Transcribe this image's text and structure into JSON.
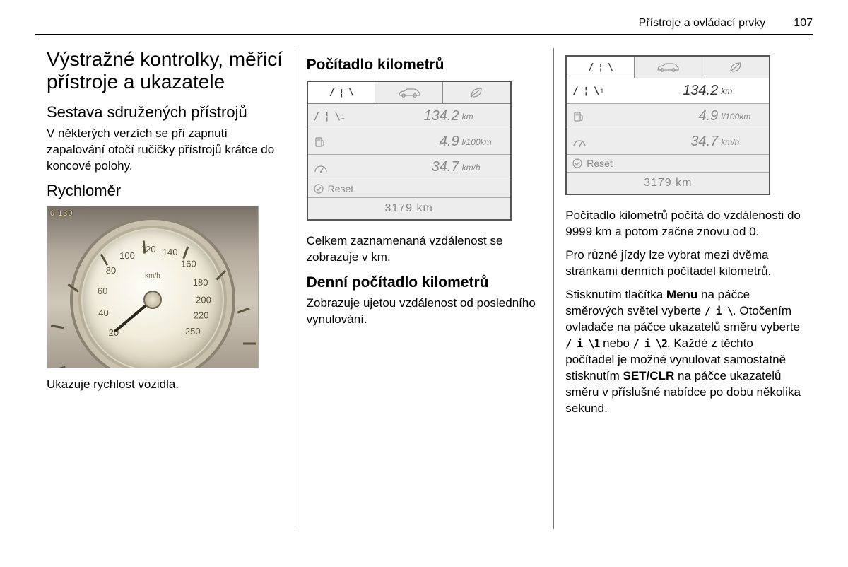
{
  "header": {
    "title": "Přístroje a ovládací prvky",
    "page": "107"
  },
  "col1": {
    "h1": "Výstražné kontrolky, měřicí přístroje a ukazatele",
    "h2a": "Sestava sdružených přístrojů",
    "p1": "V některých verzích se při zapnutí zapalování otočí ručičky přístrojů krátce do koncové polohy.",
    "h2b": "Rychloměr",
    "caption": "Ukazuje rychlost vozidla.",
    "gauge": {
      "unit": "km/h",
      "corner_nums": "0   130",
      "ticks": [
        {
          "label": "20",
          "angle": -130
        },
        {
          "label": "40",
          "angle": -105
        },
        {
          "label": "60",
          "angle": -80
        },
        {
          "label": "80",
          "angle": -55
        },
        {
          "label": "100",
          "angle": -30
        },
        {
          "label": "120",
          "angle": -5
        },
        {
          "label": "140",
          "angle": 20
        },
        {
          "label": "160",
          "angle": 45
        },
        {
          "label": "180",
          "angle": 70
        },
        {
          "label": "200",
          "angle": 90
        },
        {
          "label": "220",
          "angle": 108
        },
        {
          "label": "250",
          "angle": 128
        }
      ],
      "needle_angle": -130
    }
  },
  "col2": {
    "h3a": "Počítadlo kilometrů",
    "p_after_lcd": "Celkem zaznamenaná vzdálenost se zobrazuje v km.",
    "h3b": "Denní počítadlo kilometrů",
    "p_trip": "Zobrazuje ujetou vzdálenost od posledního vynulování."
  },
  "lcd": {
    "active_row": 0,
    "col2_active_row": 0,
    "tabs": [
      {
        "type": "lane",
        "glyph": "lanes"
      },
      {
        "type": "car",
        "glyph": "car"
      },
      {
        "type": "leaf",
        "glyph": "leaf"
      }
    ],
    "rows": [
      {
        "icon": "lane",
        "sup": "1",
        "value": "134.2",
        "unit": "km"
      },
      {
        "icon": "fuel",
        "sup": "",
        "value": "4.9",
        "unit": "l/100km"
      },
      {
        "icon": "speed",
        "sup": "",
        "value": "34.7",
        "unit": "km/h"
      }
    ],
    "reset_label": "Reset",
    "total": "3179 km"
  },
  "col3": {
    "p1": "Počítadlo kilometrů počítá do vzdálenosti do 9999 km a potom začne znovu od 0.",
    "p2": "Pro různé jízdy lze vybrat mezi dvěma stránkami denních počítadel kilometrů.",
    "p3_a": "Stisknutím tlačítka ",
    "p3_menu": "Menu",
    "p3_b": " na páčce směrových světel vyberte ",
    "p3_icon1": "/ i \\",
    "p3_c": ". Otočením ovladače na páčce ukazatelů směru vyberte ",
    "p3_icon2": "/ i \\1",
    "p3_d": " nebo ",
    "p3_icon3": "/ i \\2",
    "p3_e": ". Každé z těchto počítadel je možné vynulovat samostatně stisknutím ",
    "p3_set": "SET/CLR",
    "p3_f": " na páčce ukazatelů směru v příslušné nabídce po dobu několika sekund."
  }
}
